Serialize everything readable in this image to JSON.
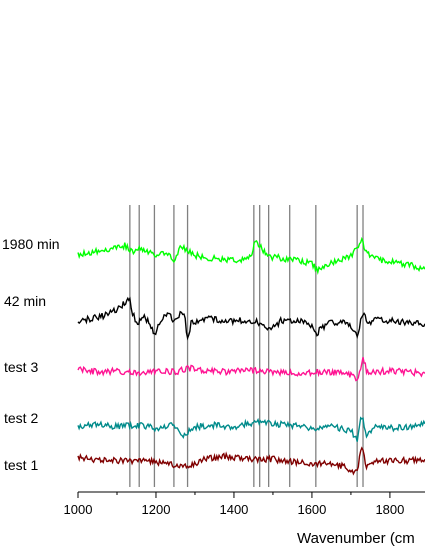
{
  "chart_data": {
    "type": "line",
    "title": "",
    "xlabel": "Wavenumber (cm",
    "ylabel": "",
    "xlim": [
      1000,
      1890
    ],
    "x_ticks": [
      1000,
      1200,
      1400,
      1600,
      1800
    ],
    "grid": false,
    "legend": "none",
    "reference_lines_x": [
      1133,
      1157,
      1196,
      1246,
      1281,
      1451,
      1466,
      1489,
      1543,
      1610,
      1716,
      1731
    ],
    "reference_line_color": "#808080",
    "series": [
      {
        "name": "1980 min",
        "color": "#00ff00",
        "baseline": 4,
        "x": [
          1000,
          1040,
          1080,
          1120,
          1133,
          1145,
          1157,
          1180,
          1200,
          1230,
          1246,
          1262,
          1281,
          1300,
          1340,
          1400,
          1440,
          1455,
          1466,
          1478,
          1489,
          1520,
          1560,
          1600,
          1615,
          1640,
          1680,
          1700,
          1716,
          1725,
          1731,
          1745,
          1770,
          1810,
          1850,
          1890
        ],
        "y": [
          0.1,
          0.2,
          0.3,
          0.45,
          0.3,
          0.2,
          0.35,
          0.25,
          0.1,
          0.15,
          -0.1,
          0.4,
          0.25,
          0.1,
          0.0,
          -0.1,
          0.0,
          0.55,
          0.45,
          0.2,
          0.05,
          0.0,
          -0.1,
          -0.2,
          -0.45,
          -0.25,
          -0.05,
          0.1,
          0.35,
          0.65,
          0.5,
          0.1,
          -0.05,
          -0.15,
          -0.25,
          -0.4
        ]
      },
      {
        "name": "42 min",
        "color": "#000000",
        "baseline": 3,
        "x": [
          1000,
          1040,
          1080,
          1110,
          1125,
          1133,
          1140,
          1150,
          1170,
          1196,
          1215,
          1235,
          1246,
          1262,
          1275,
          1281,
          1290,
          1320,
          1360,
          1400,
          1440,
          1470,
          1489,
          1520,
          1560,
          1600,
          1610,
          1640,
          1680,
          1700,
          1716,
          1731,
          1745,
          1760,
          1800,
          1850,
          1890
        ],
        "y": [
          0.0,
          0.1,
          0.25,
          0.5,
          0.75,
          0.7,
          0.3,
          -0.1,
          0.2,
          -0.45,
          0.05,
          0.3,
          -0.1,
          0.3,
          0.1,
          -0.7,
          -0.1,
          0.1,
          0.05,
          0.0,
          0.05,
          -0.1,
          -0.35,
          0.0,
          0.05,
          -0.15,
          -0.45,
          -0.1,
          0.0,
          -0.2,
          -0.5,
          0.3,
          -0.1,
          0.1,
          0.0,
          -0.05,
          -0.1
        ]
      },
      {
        "name": "test 3",
        "color": "#ff1493",
        "baseline": 2,
        "x": [
          1000,
          1050,
          1100,
          1150,
          1200,
          1250,
          1281,
          1320,
          1380,
          1440,
          1500,
          1560,
          1620,
          1680,
          1700,
          1716,
          1725,
          1731,
          1740,
          1760,
          1800,
          1850,
          1890
        ],
        "y": [
          0.1,
          0.0,
          0.05,
          -0.05,
          0.05,
          0.0,
          0.15,
          0.05,
          0.0,
          0.05,
          0.0,
          -0.05,
          0.0,
          -0.05,
          -0.1,
          -0.25,
          0.2,
          0.6,
          0.05,
          0.0,
          0.05,
          0.0,
          -0.05
        ]
      },
      {
        "name": "test 2",
        "color": "#008b8b",
        "baseline": 1,
        "x": [
          1000,
          1050,
          1100,
          1150,
          1200,
          1246,
          1270,
          1300,
          1350,
          1400,
          1450,
          1500,
          1550,
          1600,
          1650,
          1700,
          1716,
          1725,
          1731,
          1740,
          1760,
          1800,
          1850,
          1890
        ],
        "y": [
          0.0,
          0.15,
          0.05,
          0.1,
          0.0,
          0.1,
          -0.3,
          0.05,
          0.1,
          0.05,
          0.2,
          0.15,
          0.1,
          0.0,
          0.05,
          -0.1,
          -0.45,
          0.35,
          0.3,
          -0.3,
          0.1,
          0.0,
          0.05,
          0.15
        ]
      },
      {
        "name": "test 1",
        "color": "#800000",
        "baseline": 0,
        "x": [
          1000,
          1040,
          1080,
          1133,
          1180,
          1230,
          1281,
          1320,
          1380,
          1440,
          1500,
          1560,
          1620,
          1680,
          1700,
          1716,
          1725,
          1731,
          1740,
          1760,
          1800,
          1850,
          1890
        ],
        "y": [
          0.2,
          0.05,
          0.1,
          0.0,
          0.05,
          -0.05,
          -0.2,
          0.1,
          0.2,
          0.1,
          0.1,
          0.0,
          -0.05,
          -0.15,
          -0.3,
          -0.4,
          0.35,
          0.45,
          -0.2,
          0.0,
          0.05,
          0.05,
          0.1
        ]
      }
    ]
  }
}
